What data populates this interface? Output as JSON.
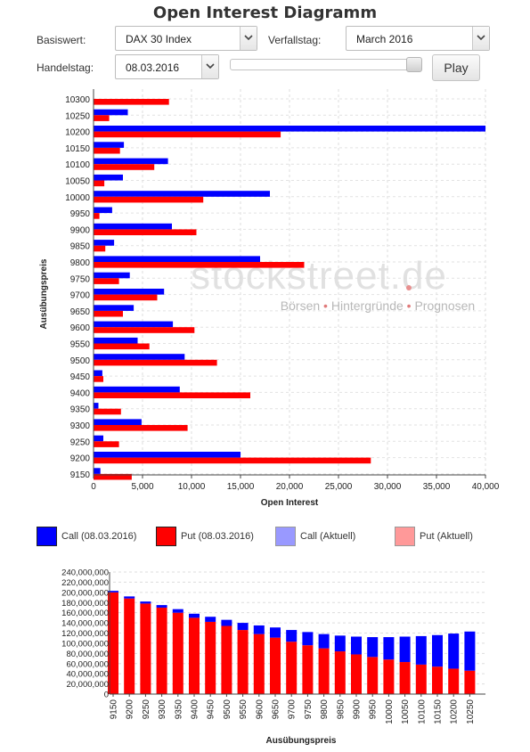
{
  "page": {
    "title": "Open Interest Diagramm"
  },
  "controls": {
    "basiswert_label": "Basiswert:",
    "basiswert_value": "DAX 30 Index",
    "verfallstag_label": "Verfallstag:",
    "verfallstag_value": "March 2016",
    "handelstag_label": "Handelstag:",
    "handelstag_value": "08.03.2016",
    "slider_fraction": 1.0,
    "play_label": "Play"
  },
  "watermark": {
    "logo_text": "stockstreet.de",
    "tagline_parts": [
      "Börsen",
      "Hintergründe",
      "Prognosen"
    ]
  },
  "legend": [
    {
      "label": "Call (08.03.2016)",
      "color": "#0000ff"
    },
    {
      "label": "Put (08.03.2016)",
      "color": "#ff0000"
    },
    {
      "label": "Call (Aktuell)",
      "color": "#9999ff"
    },
    {
      "label": "Put (Aktuell)",
      "color": "#ff9999"
    }
  ],
  "chart_data": [
    {
      "type": "bar",
      "orientation": "horizontal",
      "xlabel": "Open Interest",
      "ylabel": "Ausübungspreis",
      "xlim": [
        0,
        40000
      ],
      "xticks": [
        "0",
        "5,000",
        "10,000",
        "15,000",
        "20,000",
        "25,000",
        "30,000",
        "35,000",
        "40,000"
      ],
      "grid": true,
      "categories": [
        "10300",
        "10250",
        "10200",
        "10150",
        "10100",
        "10050",
        "10000",
        "9950",
        "9900",
        "9850",
        "9800",
        "9750",
        "9700",
        "9650",
        "9600",
        "9550",
        "9500",
        "9450",
        "9400",
        "9350",
        "9300",
        "9250",
        "9200",
        "9150"
      ],
      "series": [
        {
          "name": "Call (08.03.2016)",
          "color": "#0000ff",
          "values": [
            0,
            3500,
            40000,
            3100,
            7600,
            3000,
            18000,
            1900,
            8000,
            2100,
            17000,
            3700,
            7200,
            4100,
            8100,
            4500,
            9300,
            900,
            8800,
            500,
            4900,
            1000,
            15000,
            700
          ]
        },
        {
          "name": "Put (08.03.2016)",
          "color": "#ff0000",
          "values": [
            7700,
            1600,
            19100,
            2700,
            6200,
            1100,
            11200,
            600,
            10500,
            1200,
            21500,
            2600,
            6500,
            3000,
            10300,
            5700,
            12600,
            1000,
            16000,
            2800,
            9600,
            2600,
            28300,
            3900
          ]
        }
      ]
    },
    {
      "type": "bar",
      "stacked": true,
      "xlabel": "Ausübungspreis",
      "ylabel": "",
      "ylim": [
        0,
        240000000
      ],
      "yticks": [
        "0",
        "20,000,000",
        "40,000,000",
        "60,000,000",
        "80,000,000",
        "100,000,000",
        "120,000,000",
        "140,000,000",
        "160,000,000",
        "180,000,000",
        "200,000,000",
        "220,000,000",
        "240,000,000"
      ],
      "grid": true,
      "categories": [
        "9150",
        "9200",
        "9250",
        "9300",
        "9350",
        "9400",
        "9450",
        "9500",
        "9550",
        "9600",
        "9650",
        "9700",
        "9750",
        "9800",
        "9850",
        "9900",
        "9950",
        "10000",
        "10050",
        "10100",
        "10150",
        "10200",
        "10250"
      ],
      "series": [
        {
          "name": "Put (08.03.2016)",
          "color": "#ff0000",
          "values": [
            200000000,
            188000000,
            178000000,
            170000000,
            160000000,
            150000000,
            142000000,
            134000000,
            126000000,
            118000000,
            111000000,
            103000000,
            96000000,
            90000000,
            84000000,
            78000000,
            73000000,
            68000000,
            63000000,
            58000000,
            54000000,
            50000000,
            46000000
          ]
        },
        {
          "name": "Call (08.03.2016)",
          "color": "#0000ff",
          "values": [
            3000000,
            4000000,
            4000000,
            5000000,
            7000000,
            8000000,
            10000000,
            12000000,
            14000000,
            17000000,
            20000000,
            23000000,
            26000000,
            28000000,
            31000000,
            35000000,
            39000000,
            44000000,
            50000000,
            56000000,
            62000000,
            69000000,
            77000000
          ]
        }
      ]
    }
  ]
}
